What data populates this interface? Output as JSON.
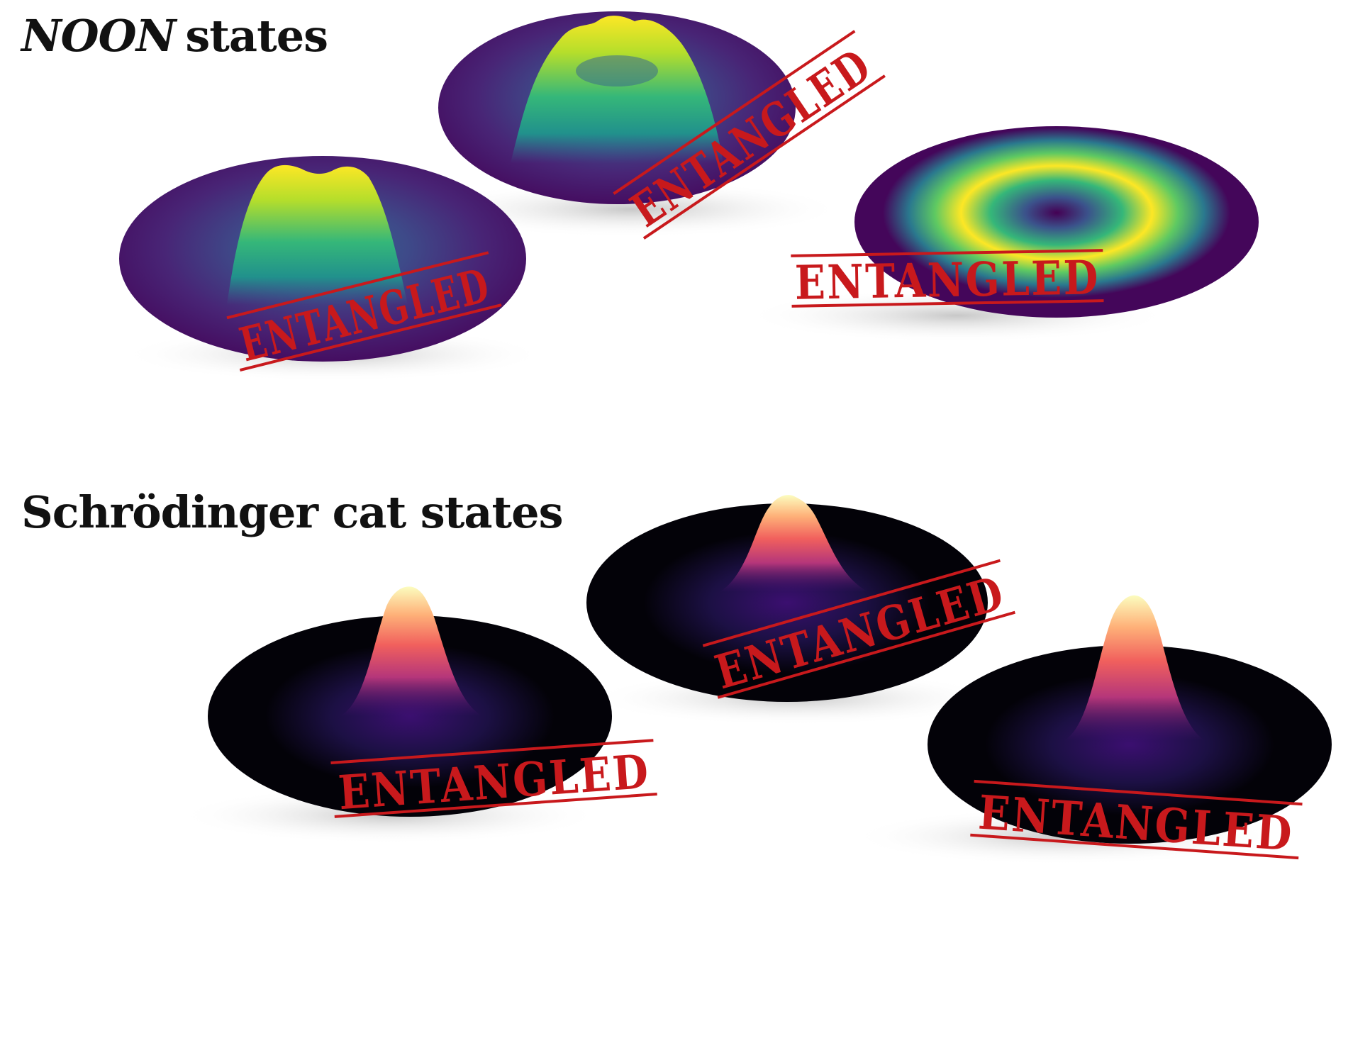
{
  "sections": [
    {
      "title_italic": "NOON",
      "title_rest": "states"
    },
    {
      "title": "Schrödinger cat states"
    }
  ],
  "stamps": [
    {
      "text": "ENTANGLED"
    },
    {
      "text": "ENTANGLED"
    },
    {
      "text": "ENTANGLED"
    },
    {
      "text": "ENTANGLED"
    },
    {
      "text": "ENTANGLED"
    },
    {
      "text": "ENTANGLED"
    }
  ],
  "colors": {
    "stamp_red": "#c8191c",
    "noon_base": "#44065a",
    "cat_base": "#030208"
  }
}
